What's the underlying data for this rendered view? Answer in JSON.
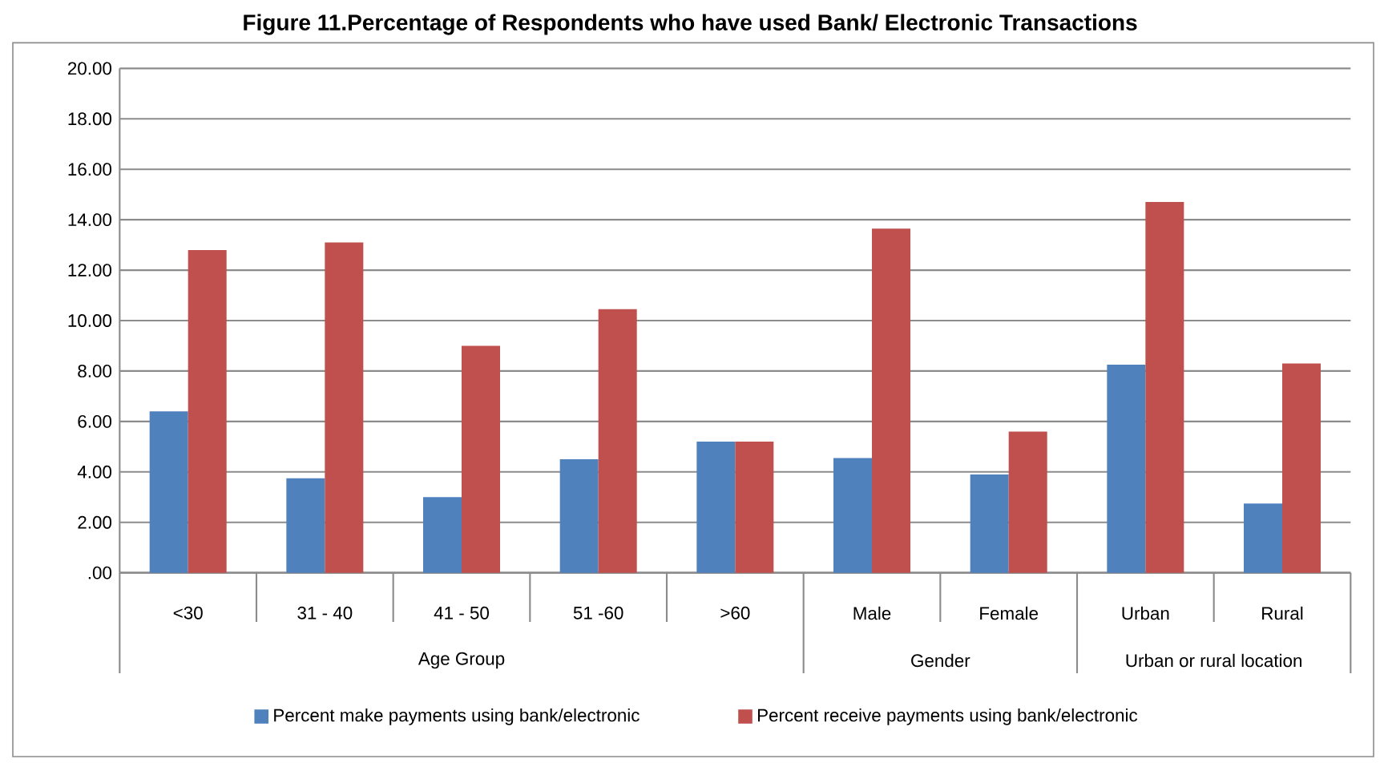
{
  "chart_data": {
    "type": "bar",
    "title": "Figure 11.Percentage of Respondents who have used Bank/ Electronic Transactions",
    "categories": [
      "<30",
      "31 - 40",
      "41 - 50",
      "51 -60",
      ">60",
      "Male",
      "Female",
      "Urban",
      "Rural"
    ],
    "series": [
      {
        "name": "Percent make payments using bank/electronic",
        "color": "#4f81bd",
        "values": [
          6.4,
          3.75,
          3.0,
          4.5,
          5.2,
          4.55,
          3.9,
          8.25,
          2.75
        ]
      },
      {
        "name": "Percent receive payments using bank/electronic",
        "color": "#c0504d",
        "values": [
          12.8,
          13.1,
          9.0,
          10.45,
          5.2,
          13.65,
          5.6,
          14.7,
          8.3
        ]
      }
    ],
    "ylim": [
      0,
      20
    ],
    "yticks": [
      {
        "value": 0,
        "label": ".00"
      },
      {
        "value": 2,
        "label": "2.00"
      },
      {
        "value": 4,
        "label": "4.00"
      },
      {
        "value": 6,
        "label": "6.00"
      },
      {
        "value": 8,
        "label": "8.00"
      },
      {
        "value": 10,
        "label": "10.00"
      },
      {
        "value": 12,
        "label": "12.00"
      },
      {
        "value": 14,
        "label": "14.00"
      },
      {
        "value": 16,
        "label": "16.00"
      },
      {
        "value": 18,
        "label": "18.00"
      },
      {
        "value": 20,
        "label": "20.00"
      }
    ],
    "annotations": [
      "Age Group",
      "Gender",
      "Urban or rural location"
    ],
    "grid": "y",
    "legend": "bottom"
  }
}
